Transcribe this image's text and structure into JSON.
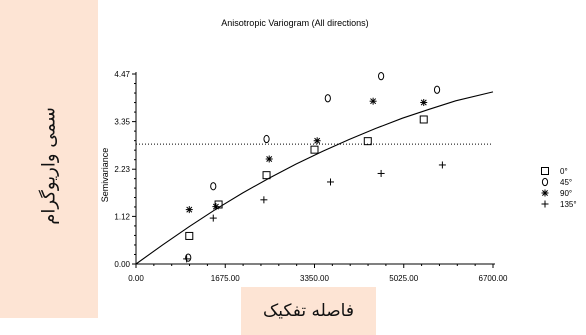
{
  "side_label": "سمی واریوگرام",
  "bottom_label": "فاصله تفکیک",
  "chart_data": {
    "type": "scatter",
    "title": "Anisotropic Variogram (All directions)",
    "xlabel": "",
    "ylabel": "Semivariance",
    "xlim": [
      0,
      6700
    ],
    "ylim": [
      0,
      4.47
    ],
    "x_ticks": [
      "0.00",
      "1675.00",
      "3350.00",
      "5025.00",
      "6700.00"
    ],
    "y_ticks": [
      "0.00",
      "1.12",
      "2.23",
      "3.35",
      "4.47"
    ],
    "x_tick_values": [
      0,
      1675,
      3350,
      5025,
      6700
    ],
    "y_tick_values": [
      0,
      1.12,
      2.23,
      3.35,
      4.47
    ],
    "sill_line": 2.82,
    "legend_position": "right",
    "series": [
      {
        "name": "0°",
        "marker": "square",
        "points": [
          [
            1000,
            0.66
          ],
          [
            1550,
            1.4
          ],
          [
            2450,
            2.09
          ],
          [
            3350,
            2.69
          ],
          [
            4350,
            2.89
          ],
          [
            5400,
            3.4
          ]
        ]
      },
      {
        "name": "45°",
        "marker": "circle",
        "points": [
          [
            980,
            0.15
          ],
          [
            1450,
            1.83
          ],
          [
            2450,
            2.94
          ],
          [
            3600,
            3.9
          ],
          [
            4600,
            4.42
          ],
          [
            5650,
            4.1
          ]
        ]
      },
      {
        "name": "90°",
        "marker": "asterisk",
        "points": [
          [
            1000,
            1.28
          ],
          [
            1500,
            1.35
          ],
          [
            2500,
            2.47
          ],
          [
            3400,
            2.9
          ],
          [
            4450,
            3.83
          ],
          [
            5400,
            3.8
          ]
        ]
      },
      {
        "name": "135°",
        "marker": "plus",
        "points": [
          [
            950,
            0.12
          ],
          [
            1450,
            1.08
          ],
          [
            2400,
            1.51
          ],
          [
            3650,
            1.93
          ],
          [
            4600,
            2.13
          ],
          [
            5750,
            2.33
          ]
        ]
      }
    ],
    "model_curve": [
      [
        0,
        0
      ],
      [
        500,
        0.45
      ],
      [
        1000,
        0.88
      ],
      [
        1500,
        1.29
      ],
      [
        2000,
        1.67
      ],
      [
        2500,
        2.02
      ],
      [
        3000,
        2.35
      ],
      [
        3500,
        2.65
      ],
      [
        4000,
        2.93
      ],
      [
        4500,
        3.19
      ],
      [
        5000,
        3.43
      ],
      [
        5500,
        3.64
      ],
      [
        6000,
        3.84
      ],
      [
        6700,
        4.05
      ]
    ]
  }
}
